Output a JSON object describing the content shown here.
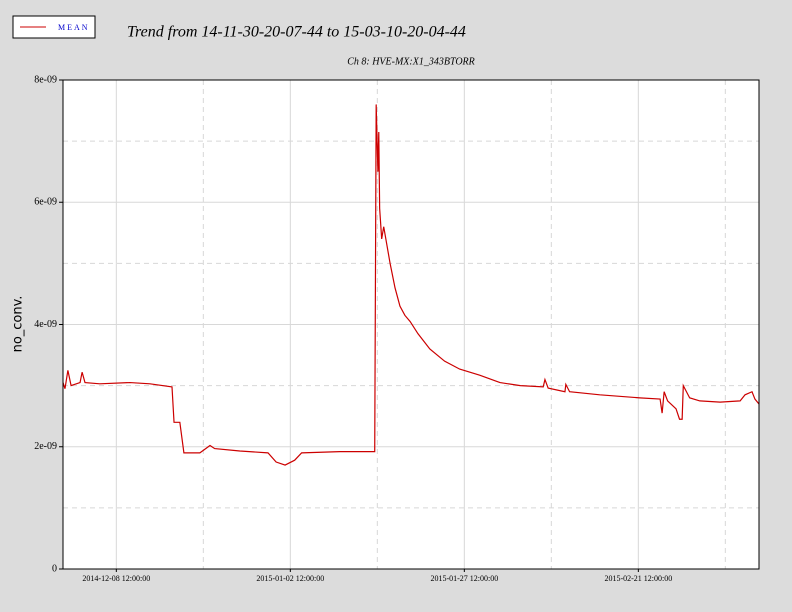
{
  "chart_data": {
    "type": "line",
    "title": "Trend from 14-11-30-20-07-44 to 15-03-10-20-04-44",
    "subtitle": "Ch 8: HVE-MX:X1_343BTORR",
    "y_label": "no_conv.",
    "legend": "top-left",
    "grid": true,
    "xlim": [
      "2014-11-30 20:07:44",
      "2015-03-10 20:04:44"
    ],
    "xticks": [
      "2014-12-08 12:00:00",
      "2015-01-02 12:00:00",
      "2015-01-27 12:00:00",
      "2015-02-21 12:00:00"
    ],
    "ylim": [
      0,
      8e-09
    ],
    "yticks": [
      0,
      {
        "value": 2e-09,
        "label": "2e-09"
      },
      {
        "value": 4e-09,
        "label": "4e-09"
      },
      {
        "value": 6e-09,
        "label": "6e-09"
      },
      {
        "value": 8e-09,
        "label": "8e-09"
      }
    ],
    "x": [
      "2014-11-30 20:07:44",
      "2014-12-01 03:00",
      "2014-12-01 13:00",
      "2014-12-02 00:00",
      "2014-12-03 07:00",
      "2014-12-03 14:00",
      "2014-12-04 00:00",
      "2014-12-06 03:00",
      "2014-12-10 11:00",
      "2014-12-13 08:00",
      "2014-12-16 12:00",
      "2014-12-16 19:00",
      "2014-12-17 15:00",
      "2014-12-18 05:00",
      "2014-12-20 12:00",
      "2014-12-21 23:00",
      "2014-12-22 15:00",
      "2014-12-26 06:00",
      "2014-12-30 07:00",
      "2014-12-31 11:00",
      "2015-01-01 18:00",
      "2015-01-03 03:00",
      "2015-01-04 03:00",
      "2015-01-09 15:00",
      "2015-01-14 15:00",
      "2015-01-14 20:00",
      "2015-01-15 02:00",
      "2015-01-15 05:00",
      "2015-01-15 08:00",
      "2015-01-15 15:00",
      "2015-01-15 22:00",
      "2015-01-16 20:00",
      "2015-01-17 13:00",
      "2015-01-18 06:00",
      "2015-01-18 23:00",
      "2015-01-19 17:00",
      "2015-01-20 20:00",
      "2015-01-22 13:00",
      "2015-01-24 16:00",
      "2015-01-26 20:00",
      "2015-01-29 17:00",
      "2015-02-01 15:00",
      "2015-02-04 13:00",
      "2015-02-07 20:00",
      "2015-02-08 02:00",
      "2015-02-08 13:00",
      "2015-02-10 23:00",
      "2015-02-11 02:00",
      "2015-02-11 15:00",
      "2015-02-15 23:00",
      "2015-02-21 17:00",
      "2015-02-24 15:00",
      "2015-02-24 22:00",
      "2015-02-25 05:00",
      "2015-02-25 17:00",
      "2015-02-26 22:00",
      "2015-02-27 10:00",
      "2015-02-27 19:00",
      "2015-02-27 23:00",
      "2015-02-28 21:00",
      "2015-03-02 08:00",
      "2015-03-05 06:00",
      "2015-03-08 03:00",
      "2015-03-08 20:00",
      "2015-03-09 20:00",
      "2015-03-10 06:00",
      "2015-03-10 20:00"
    ],
    "series": [
      {
        "name": "MEAN",
        "color": "#cc0000",
        "values": [
          3.05e-09,
          2.95e-09,
          3.25e-09,
          3e-09,
          3.05e-09,
          3.22e-09,
          3.05e-09,
          3.03e-09,
          3.05e-09,
          3.03e-09,
          2.98e-09,
          2.4e-09,
          2.4e-09,
          1.9e-09,
          1.9e-09,
          2.02e-09,
          1.97e-09,
          1.93e-09,
          1.9e-09,
          1.75e-09,
          1.7e-09,
          1.78e-09,
          1.9e-09,
          1.92e-09,
          1.92e-09,
          7.6e-09,
          6.5e-09,
          7.15e-09,
          5.9e-09,
          5.4e-09,
          5.6e-09,
          5e-09,
          4.6e-09,
          4.3e-09,
          4.15e-09,
          4.05e-09,
          3.85e-09,
          3.6e-09,
          3.4e-09,
          3.27e-09,
          3.17e-09,
          3.05e-09,
          3e-09,
          2.98e-09,
          3.1e-09,
          2.96e-09,
          2.9e-09,
          3.02e-09,
          2.9e-09,
          2.85e-09,
          2.8e-09,
          2.78e-09,
          2.55e-09,
          2.9e-09,
          2.75e-09,
          2.62e-09,
          2.45e-09,
          2.45e-09,
          3e-09,
          2.8e-09,
          2.75e-09,
          2.73e-09,
          2.75e-09,
          2.85e-09,
          2.9e-09,
          2.78e-09,
          2.7e-09
        ]
      }
    ]
  }
}
